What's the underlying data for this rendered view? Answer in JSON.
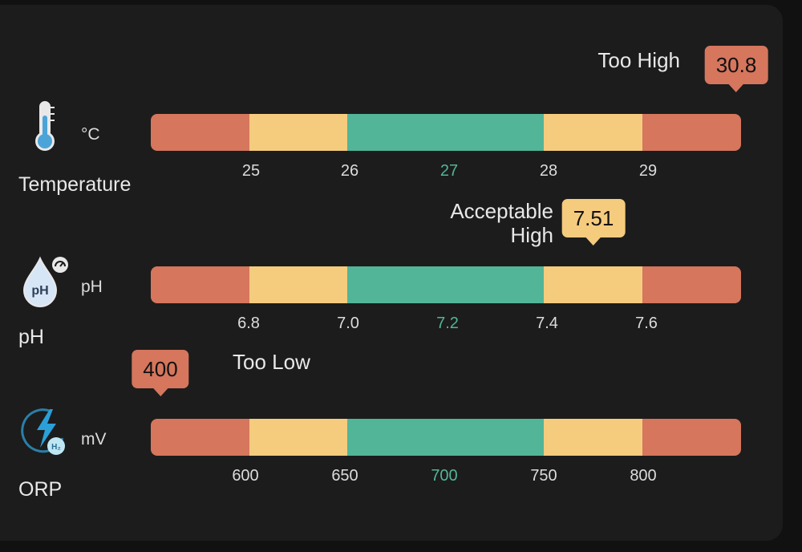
{
  "colors": {
    "red": "#d5765d",
    "yellow": "#f5cb7e",
    "green": "#52b598",
    "background": "#1c1c1c"
  },
  "segments": [
    "red",
    "yellow",
    "green",
    "green",
    "yellow",
    "red"
  ],
  "sensors": [
    {
      "name": "Temperature",
      "unit": "°C",
      "icon": "thermometer-icon",
      "value": "30.8",
      "status": "Too High",
      "status_color": "#d5765d",
      "value_position_fraction": 0.99,
      "ticks": [
        "25",
        "26",
        "27",
        "28",
        "29"
      ]
    },
    {
      "name": "pH",
      "unit": "pH",
      "icon": "ph-drop-icon",
      "value": "7.51",
      "status": "Acceptable High",
      "status_lines": [
        "Acceptable",
        "High"
      ],
      "status_color": "#f5cb7e",
      "value_position_fraction": 0.75,
      "ticks": [
        "6.8",
        "7.0",
        "7.2",
        "7.4",
        "7.6"
      ]
    },
    {
      "name": "ORP",
      "unit": "mV",
      "icon": "orp-lightning-icon",
      "value": "400",
      "status": "Too Low",
      "status_color": "#d5765d",
      "value_position_fraction": 0.015,
      "ticks": [
        "600",
        "650",
        "700",
        "750",
        "800"
      ]
    }
  ]
}
